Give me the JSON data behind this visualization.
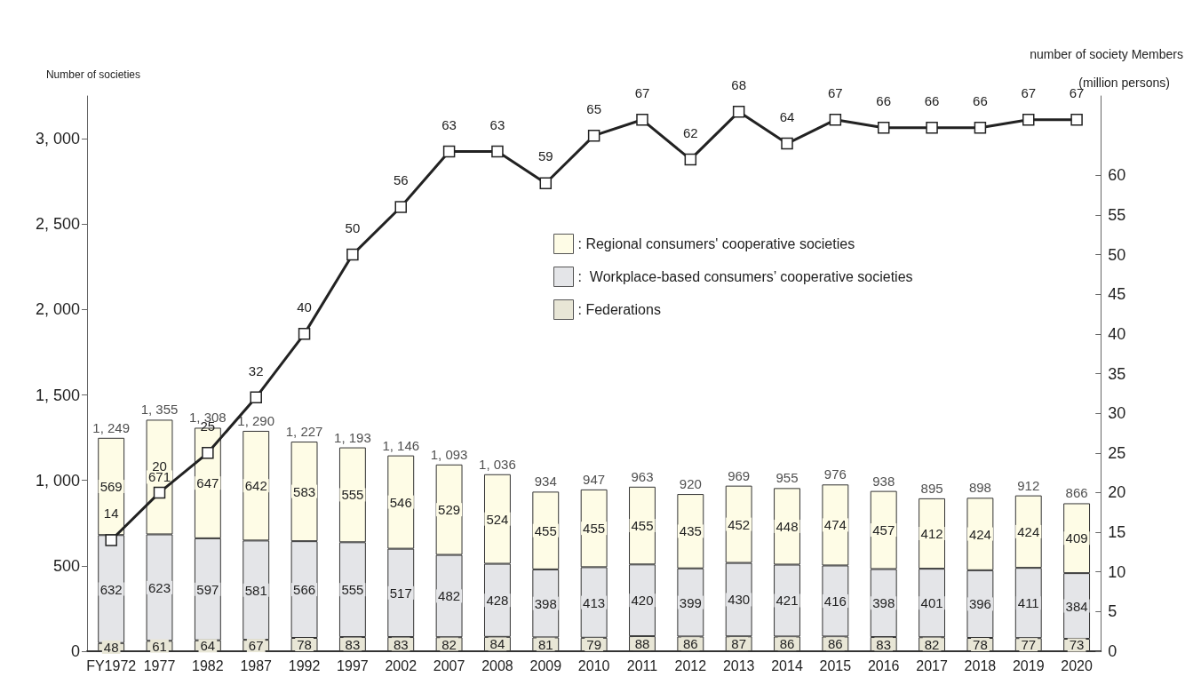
{
  "chart_data": {
    "type": "bar",
    "stacked": true,
    "ylabel": "Number of societies",
    "y2label": "number of society Members",
    "annotations": [
      "(million persons)"
    ],
    "categories": [
      "FY1972",
      "1977",
      "1982",
      "1987",
      "1992",
      "1997",
      "2002",
      "2007",
      "2008",
      "2009",
      "2010",
      "2011",
      "2012",
      "2013",
      "2014",
      "2015",
      "2016",
      "2017",
      "2018",
      "2019",
      "2020"
    ],
    "series": [
      {
        "name": ": Federations",
        "color": "#e8e6d6",
        "values": [
          48,
          61,
          64,
          67,
          78,
          83,
          83,
          82,
          84,
          81,
          79,
          88,
          86,
          87,
          86,
          86,
          83,
          82,
          78,
          77,
          73
        ]
      },
      {
        "name": ":  Workplace-based consumers’ cooperative societies",
        "color": "#e4e5e8",
        "values": [
          632,
          623,
          597,
          581,
          566,
          555,
          517,
          482,
          428,
          398,
          413,
          420,
          399,
          430,
          421,
          416,
          398,
          401,
          396,
          411,
          384
        ]
      },
      {
        "name": ": Regional consumers' cooperative societies",
        "color": "#fefce6",
        "values": [
          569,
          671,
          647,
          642,
          583,
          555,
          546,
          529,
          524,
          455,
          455,
          455,
          435,
          452,
          448,
          474,
          457,
          412,
          424,
          424,
          409
        ]
      },
      {
        "type": "line",
        "axis": "y2",
        "color": "#222222",
        "marker": "square",
        "values": [
          14,
          20,
          25,
          32,
          40,
          50,
          56,
          63,
          63,
          59,
          65,
          67,
          62,
          68,
          64,
          67,
          66,
          66,
          66,
          67,
          67
        ]
      }
    ],
    "totals": [
      "1, 249",
      "1, 355",
      "1, 308",
      "1, 290",
      "1, 227",
      "1, 193",
      "1, 146",
      "1, 093",
      "1, 036",
      "934",
      "947",
      "963",
      "920",
      "969",
      "955",
      "976",
      "938",
      "895",
      "898",
      "912",
      "866"
    ],
    "data_labels": true,
    "ylim": [
      0,
      3250
    ],
    "yticks": [
      0,
      500,
      {
        "value": 1000,
        "label": "1, 000"
      },
      {
        "value": 1500,
        "label": "1, 500"
      },
      {
        "value": 2000,
        "label": "2, 000"
      },
      {
        "value": 2500,
        "label": "2, 500"
      },
      {
        "value": 3000,
        "label": "3, 000"
      }
    ],
    "y2lim": [
      0,
      70
    ],
    "y2ticks": [
      0,
      5,
      10,
      15,
      20,
      25,
      30,
      35,
      40,
      45,
      50,
      55,
      60
    ],
    "grid": false,
    "legend": "top"
  }
}
